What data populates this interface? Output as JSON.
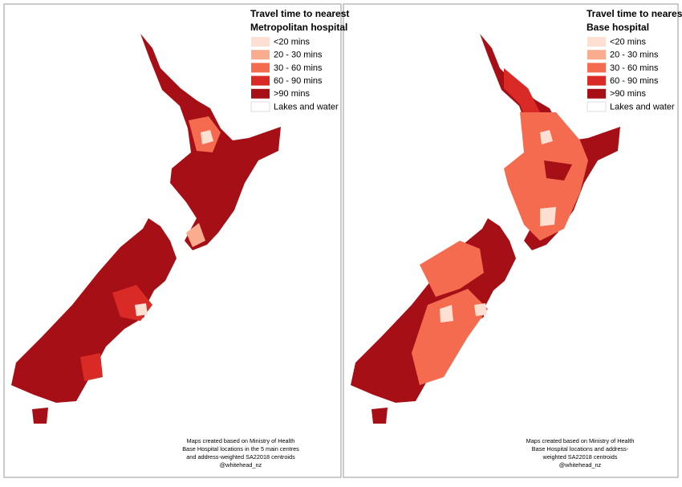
{
  "panels": [
    {
      "title": "Travel time to nearest",
      "subtitle": "Metropolitan hospital",
      "legend": [
        {
          "label": "<20 mins",
          "color": "#fde0d2"
        },
        {
          "label": "20 - 30 mins",
          "color": "#f9ac8e"
        },
        {
          "label": "30 - 60 mins",
          "color": "#f46b50"
        },
        {
          "label": "60 - 90 mins",
          "color": "#d92a26"
        },
        {
          "label": ">90 mins",
          "color": "#a50f15"
        },
        {
          "label": "Lakes and water",
          "color": "#ffffff"
        }
      ],
      "footnote": [
        "Maps created based on Ministry of Health",
        "Base Hospital locations in the 5 main centres",
        "and address-weighted SA22018 centroids",
        "@whitehead_nz"
      ]
    },
    {
      "title": "Travel time to nearest",
      "subtitle": "Base hospital",
      "legend": [
        {
          "label": "<20 mins",
          "color": "#fde0d2"
        },
        {
          "label": "20 - 30 mins",
          "color": "#f9ac8e"
        },
        {
          "label": "30 - 60 mins",
          "color": "#f46b50"
        },
        {
          "label": "60 - 90 mins",
          "color": "#d92a26"
        },
        {
          "label": ">90 mins",
          "color": "#a50f15"
        },
        {
          "label": "Lakes and water",
          "color": "#ffffff"
        }
      ],
      "footnote": [
        "Maps created based on Ministry of Health",
        "Base Hospital locations and address-",
        "weighted SA22018 centroids",
        "@whitehead_nz"
      ]
    }
  ]
}
